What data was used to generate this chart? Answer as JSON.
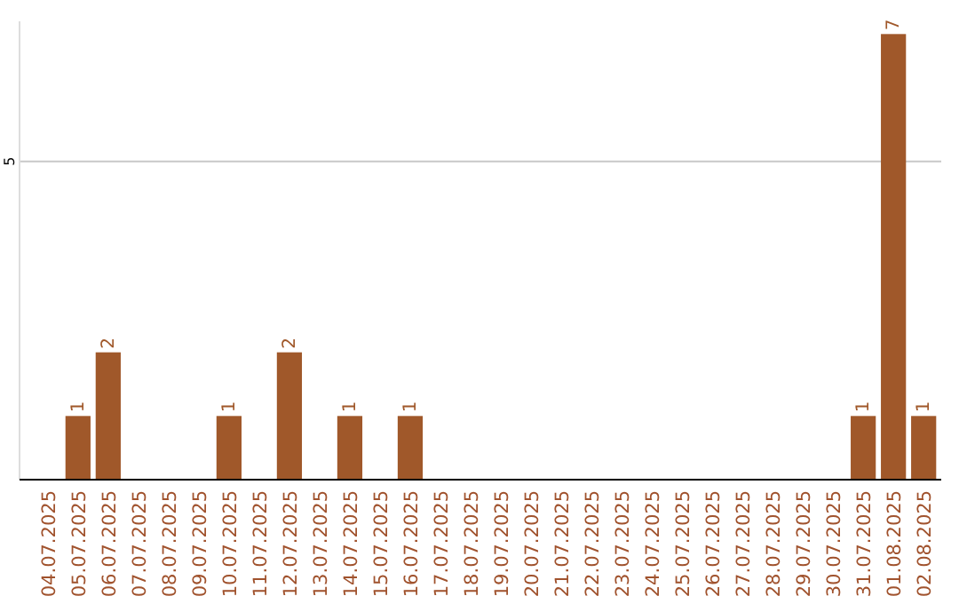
{
  "chart_data": {
    "type": "bar",
    "categories": [
      "04.07.2025",
      "05.07.2025",
      "06.07.2025",
      "07.07.2025",
      "08.07.2025",
      "09.07.2025",
      "10.07.2025",
      "11.07.2025",
      "12.07.2025",
      "13.07.2025",
      "14.07.2025",
      "15.07.2025",
      "16.07.2025",
      "17.07.2025",
      "18.07.2025",
      "19.07.2025",
      "20.07.2025",
      "21.07.2025",
      "22.07.2025",
      "23.07.2025",
      "24.07.2025",
      "25.07.2025",
      "26.07.2025",
      "27.07.2025",
      "28.07.2025",
      "29.07.2025",
      "30.07.2025",
      "31.07.2025",
      "01.08.2025",
      "02.08.2025"
    ],
    "values": [
      0,
      1,
      2,
      0,
      0,
      0,
      1,
      0,
      2,
      0,
      1,
      0,
      1,
      0,
      0,
      0,
      0,
      0,
      0,
      0,
      0,
      0,
      0,
      0,
      0,
      0,
      0,
      1,
      7,
      1
    ],
    "value_labels": [
      null,
      "1",
      "2",
      null,
      null,
      null,
      "1",
      null,
      "2",
      null,
      "1",
      null,
      "1",
      null,
      null,
      null,
      null,
      null,
      null,
      null,
      null,
      null,
      null,
      null,
      null,
      null,
      null,
      "1",
      "7",
      "1"
    ],
    "color": "#a0582a",
    "ylim": [
      0,
      7.2
    ],
    "yticks": [
      5
    ],
    "grid": "y"
  }
}
